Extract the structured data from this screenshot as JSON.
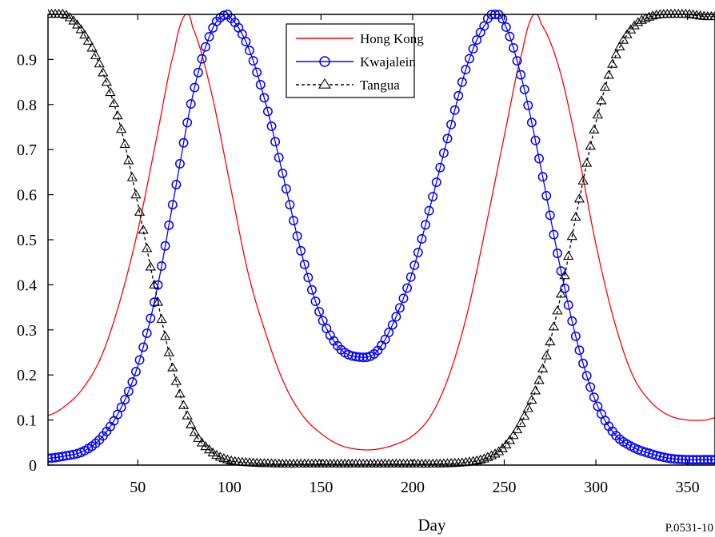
{
  "chart_data": {
    "type": "line",
    "title": "",
    "xlabel": "Day",
    "ylabel": "",
    "xlim": [
      1,
      365
    ],
    "ylim": [
      0,
      1
    ],
    "xticks": [
      50,
      100,
      150,
      200,
      250,
      300,
      350
    ],
    "yticks": [
      0,
      0.1,
      0.2,
      0.3,
      0.4,
      0.5,
      0.6,
      0.7,
      0.8,
      0.9
    ],
    "grid": false,
    "legend_position": "top-center",
    "series": [
      {
        "name": "Hong Kong",
        "color": "#ff0000",
        "line": "solid",
        "marker": "none",
        "x": [
          1,
          10,
          20,
          30,
          40,
          50,
          60,
          70,
          76,
          80,
          90,
          100,
          110,
          120,
          130,
          140,
          150,
          160,
          170,
          180,
          190,
          200,
          210,
          220,
          230,
          240,
          250,
          260,
          266,
          270,
          280,
          290,
          300,
          310,
          320,
          330,
          340,
          350,
          360,
          365
        ],
        "y": [
          0.11,
          0.13,
          0.17,
          0.24,
          0.36,
          0.52,
          0.72,
          0.92,
          1.0,
          0.97,
          0.83,
          0.63,
          0.43,
          0.29,
          0.18,
          0.11,
          0.07,
          0.045,
          0.035,
          0.035,
          0.045,
          0.065,
          0.11,
          0.2,
          0.34,
          0.53,
          0.73,
          0.92,
          1.0,
          0.98,
          0.88,
          0.7,
          0.49,
          0.32,
          0.2,
          0.14,
          0.11,
          0.1,
          0.1,
          0.105
        ]
      },
      {
        "name": "Kwajalein",
        "color": "#0000ff",
        "line": "solid",
        "marker": "circle",
        "x": [
          1,
          10,
          20,
          30,
          40,
          50,
          60,
          70,
          80,
          90,
          98,
          100,
          110,
          120,
          130,
          140,
          150,
          160,
          170,
          180,
          190,
          200,
          210,
          220,
          230,
          240,
          244,
          250,
          260,
          270,
          280,
          290,
          300,
          310,
          320,
          330,
          340,
          350,
          360,
          365
        ],
        "y": [
          0.015,
          0.02,
          0.03,
          0.06,
          0.12,
          0.22,
          0.38,
          0.6,
          0.82,
          0.96,
          1.0,
          0.995,
          0.93,
          0.8,
          0.63,
          0.46,
          0.33,
          0.26,
          0.24,
          0.25,
          0.32,
          0.43,
          0.58,
          0.74,
          0.89,
          0.98,
          1.0,
          0.98,
          0.85,
          0.66,
          0.45,
          0.27,
          0.14,
          0.07,
          0.04,
          0.025,
          0.015,
          0.012,
          0.012,
          0.012
        ]
      },
      {
        "name": "Tangua",
        "color": "#000000",
        "line": "dashed",
        "marker": "triangle",
        "x": [
          1,
          10,
          20,
          30,
          40,
          50,
          60,
          70,
          80,
          90,
          100,
          110,
          120,
          130,
          140,
          150,
          160,
          170,
          180,
          190,
          200,
          210,
          220,
          230,
          240,
          250,
          260,
          270,
          280,
          290,
          300,
          310,
          320,
          330,
          340,
          350,
          360,
          365
        ],
        "y": [
          1.0,
          1.0,
          0.96,
          0.88,
          0.76,
          0.58,
          0.38,
          0.2,
          0.08,
          0.03,
          0.01,
          0.005,
          0.003,
          0.002,
          0.002,
          0.002,
          0.002,
          0.002,
          0.002,
          0.002,
          0.002,
          0.002,
          0.003,
          0.006,
          0.015,
          0.04,
          0.1,
          0.2,
          0.36,
          0.57,
          0.76,
          0.9,
          0.97,
          0.995,
          1.0,
          1.0,
          0.995,
          0.995
        ]
      }
    ]
  },
  "reference_code": "P.0531-10"
}
